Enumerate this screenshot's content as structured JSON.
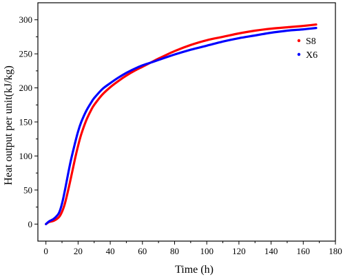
{
  "chart_data": {
    "type": "line",
    "title": "",
    "xlabel": "Time (h)",
    "ylabel": "Heat output per unit(kJ/kg)",
    "xlim": [
      -5,
      180
    ],
    "ylim": [
      -25,
      325
    ],
    "xticks": [
      0,
      20,
      40,
      60,
      80,
      100,
      120,
      140,
      160,
      180
    ],
    "yticks": [
      0,
      50,
      100,
      150,
      200,
      250,
      300
    ],
    "grid": false,
    "legend_position": "top-right",
    "series": [
      {
        "name": "S8",
        "color": "#ff0000",
        "x": [
          0,
          2,
          5,
          8,
          10,
          12,
          15,
          18,
          20,
          22,
          25,
          28,
          30,
          35,
          40,
          45,
          50,
          55,
          60,
          65,
          70,
          80,
          90,
          100,
          110,
          120,
          130,
          140,
          150,
          160,
          168
        ],
        "y": [
          0,
          3,
          5,
          10,
          18,
          32,
          62,
          95,
          115,
          132,
          152,
          167,
          175,
          190,
          201,
          210,
          218,
          225,
          231,
          237,
          243,
          254,
          263,
          270,
          275,
          280,
          284,
          287,
          289,
          291,
          293
        ]
      },
      {
        "name": "X6",
        "color": "#0000ff",
        "x": [
          0,
          2,
          5,
          8,
          10,
          12,
          15,
          18,
          20,
          22,
          25,
          28,
          30,
          35,
          40,
          45,
          50,
          55,
          60,
          65,
          70,
          80,
          90,
          100,
          110,
          120,
          130,
          140,
          150,
          160,
          168
        ],
        "y": [
          0,
          4,
          8,
          16,
          30,
          52,
          88,
          118,
          136,
          150,
          166,
          178,
          185,
          198,
          207,
          215,
          222,
          228,
          233,
          237,
          241,
          249,
          256,
          262,
          268,
          273,
          277,
          281,
          284,
          286,
          288
        ]
      }
    ]
  }
}
